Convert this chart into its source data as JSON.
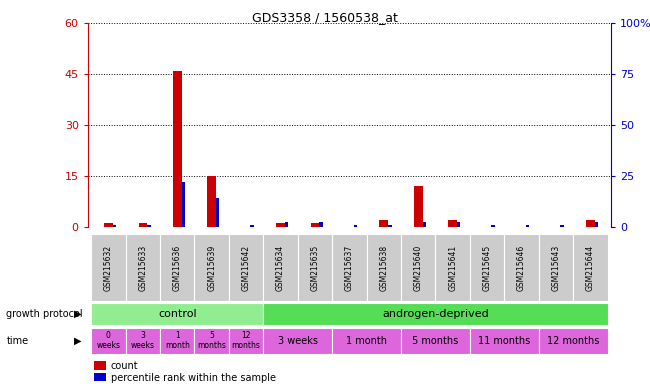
{
  "title": "GDS3358 / 1560538_at",
  "samples": [
    "GSM215632",
    "GSM215633",
    "GSM215636",
    "GSM215639",
    "GSM215642",
    "GSM215634",
    "GSM215635",
    "GSM215637",
    "GSM215638",
    "GSM215640",
    "GSM215641",
    "GSM215645",
    "GSM215646",
    "GSM215643",
    "GSM215644"
  ],
  "count": [
    1,
    1,
    46,
    15,
    0,
    1,
    1,
    0,
    2,
    12,
    2,
    0,
    0,
    0,
    2
  ],
  "percentile": [
    1,
    1,
    22,
    14,
    1,
    2,
    2,
    1,
    1,
    2,
    2,
    1,
    1,
    1,
    2
  ],
  "ylim_left": [
    0,
    60
  ],
  "ylim_right": [
    0,
    100
  ],
  "yticks_left": [
    0,
    15,
    30,
    45,
    60
  ],
  "yticks_right": [
    0,
    25,
    50,
    75,
    100
  ],
  "left_axis_color": "#cc0000",
  "right_axis_color": "#0000cc",
  "count_color": "#cc0000",
  "percentile_color": "#0000cc",
  "control_color": "#90ee90",
  "androgen_color": "#55dd55",
  "time_color": "#dd66dd",
  "time_labels_control": [
    "0\nweeks",
    "3\nweeks",
    "1\nmonth",
    "5\nmonths",
    "12\nmonths"
  ],
  "time_labels_androgen": [
    "3 weeks",
    "1 month",
    "5 months",
    "11 months",
    "12 months"
  ],
  "growth_protocol_label": "growth protocol",
  "time_label": "time",
  "legend_count": "count",
  "legend_percentile": "percentile rank within the sample",
  "sample_bg_color": "#cccccc",
  "dotted_line_color": "#000000",
  "background_color": "#ffffff"
}
